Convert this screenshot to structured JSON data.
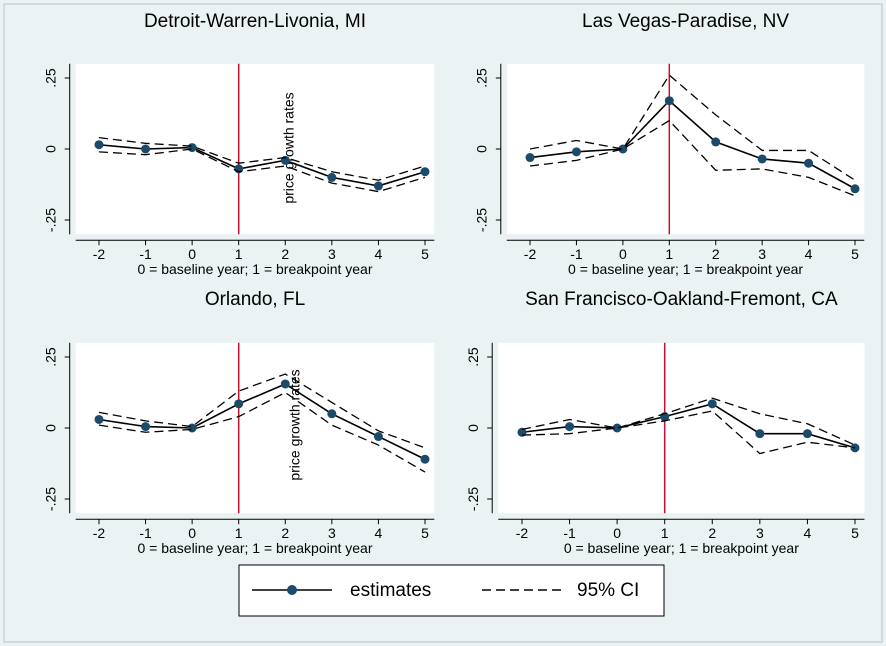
{
  "chart_data": [
    {
      "type": "line",
      "title": "Detroit-Warren-Livonia, MI",
      "xlabel": "0 = baseline year; 1 = breakpoint year",
      "ylabel": "price growth rates",
      "x": [
        -2,
        -1,
        0,
        1,
        2,
        3,
        4,
        5
      ],
      "series": [
        {
          "name": "estimates",
          "color": "#000000",
          "values": [
            0.015,
            0.0,
            0.005,
            -0.07,
            -0.04,
            -0.1,
            -0.13,
            -0.08
          ]
        },
        {
          "name": "95% CI",
          "color": "#000000",
          "lower": [
            -0.01,
            -0.02,
            0.0,
            -0.08,
            -0.06,
            -0.12,
            -0.15,
            -0.1
          ],
          "upper": [
            0.04,
            0.02,
            0.01,
            -0.05,
            -0.03,
            -0.08,
            -0.11,
            -0.06
          ]
        }
      ],
      "xlim": [
        -2.5,
        5.2
      ],
      "xticks": [
        -2,
        -1,
        0,
        1,
        2,
        3,
        4,
        5
      ],
      "ylim": [
        -0.3,
        0.3
      ],
      "yticks": [
        {
          "value": 0.25,
          "label": ".25"
        },
        0,
        {
          "value": -0.25,
          "label": "-.25"
        }
      ],
      "xline": 1,
      "xline_color": "#c8102e"
    },
    {
      "type": "line",
      "title": "Las Vegas-Paradise, NV",
      "xlabel": "0 = baseline year; 1 = breakpoint year",
      "x": [
        -2,
        -1,
        0,
        1,
        2,
        3,
        4,
        5
      ],
      "series": [
        {
          "name": "estimates",
          "color": "#000000",
          "values": [
            -0.03,
            -0.01,
            0.0,
            0.17,
            0.025,
            -0.035,
            -0.05,
            -0.14
          ]
        },
        {
          "name": "95% CI",
          "color": "#000000",
          "lower": [
            -0.06,
            -0.04,
            0.0,
            0.1,
            -0.075,
            -0.07,
            -0.1,
            -0.165
          ],
          "upper": [
            0.0,
            0.03,
            0.0,
            0.26,
            0.12,
            -0.005,
            -0.005,
            -0.11
          ]
        }
      ],
      "xlim": [
        -2.5,
        5.2
      ],
      "xticks": [
        -2,
        -1,
        0,
        1,
        2,
        3,
        4,
        5
      ],
      "ylim": [
        -0.3,
        0.3
      ],
      "yticks": [
        {
          "value": 0.25,
          "label": ".25"
        },
        0,
        {
          "value": -0.25,
          "label": "-.25"
        }
      ],
      "xline": 1,
      "xline_color": "#c8102e"
    },
    {
      "type": "line",
      "title": "Orlando, FL",
      "xlabel": "0 = baseline year; 1 = breakpoint year",
      "ylabel": "price growth rates",
      "x": [
        -2,
        -1,
        0,
        1,
        2,
        3,
        4,
        5
      ],
      "series": [
        {
          "name": "estimates",
          "color": "#000000",
          "values": [
            0.03,
            0.005,
            0.0,
            0.085,
            0.155,
            0.05,
            -0.03,
            -0.11
          ]
        },
        {
          "name": "95% CI",
          "color": "#000000",
          "lower": [
            0.01,
            -0.015,
            -0.005,
            0.04,
            0.125,
            0.01,
            -0.06,
            -0.155
          ],
          "upper": [
            0.055,
            0.025,
            0.005,
            0.13,
            0.19,
            0.09,
            -0.01,
            -0.07
          ]
        }
      ],
      "xlim": [
        -2.5,
        5.2
      ],
      "xticks": [
        -2,
        -1,
        0,
        1,
        2,
        3,
        4,
        5
      ],
      "ylim": [
        -0.3,
        0.3
      ],
      "yticks": [
        {
          "value": 0.25,
          "label": ".25"
        },
        0,
        {
          "value": -0.25,
          "label": "-.25"
        }
      ],
      "xline": 1,
      "xline_color": "#c8102e"
    },
    {
      "type": "line",
      "title": "San Francisco-Oakland-Fremont, CA",
      "xlabel": "0 = baseline year; 1 = breakpoint year",
      "x": [
        -2,
        -1,
        0,
        1,
        2,
        3,
        4,
        5
      ],
      "series": [
        {
          "name": "estimates",
          "color": "#000000",
          "values": [
            -0.015,
            0.005,
            0.0,
            0.04,
            0.085,
            -0.02,
            -0.02,
            -0.07
          ]
        },
        {
          "name": "95% CI",
          "color": "#000000",
          "lower": [
            -0.025,
            -0.02,
            0.0,
            0.025,
            0.06,
            -0.09,
            -0.05,
            -0.07
          ],
          "upper": [
            -0.005,
            0.03,
            0.0,
            0.05,
            0.105,
            0.05,
            0.015,
            -0.06
          ]
        }
      ],
      "xlim": [
        -2.5,
        5.2
      ],
      "xticks": [
        -2,
        -1,
        0,
        1,
        2,
        3,
        4,
        5
      ],
      "ylim": [
        -0.3,
        0.3
      ],
      "yticks": [
        {
          "value": 0.25,
          "label": ".25"
        },
        0,
        {
          "value": -0.25,
          "label": "-.25"
        }
      ],
      "xline": 1,
      "xline_color": "#c8102e"
    }
  ]
}
